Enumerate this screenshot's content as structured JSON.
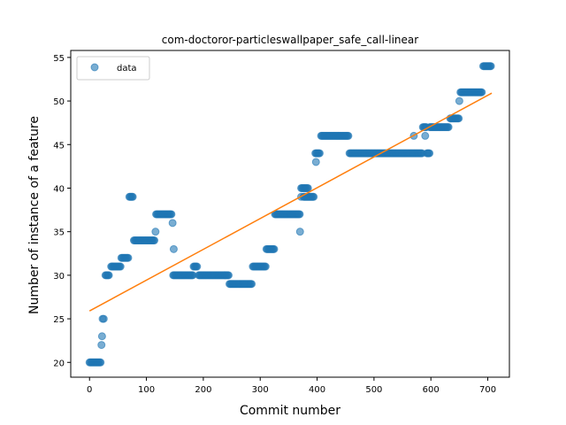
{
  "chart_data": {
    "type": "scatter",
    "title": "com-doctoror-particleswallpaper_safe_call-linear",
    "xlabel": "Commit number",
    "ylabel": "Number of instance of a feature",
    "xlim": [
      -33,
      738
    ],
    "ylim": [
      18.3,
      55.8
    ],
    "xticks": [
      0,
      100,
      200,
      300,
      400,
      500,
      600,
      700
    ],
    "yticks": [
      20,
      25,
      30,
      35,
      40,
      45,
      50,
      55
    ],
    "legend": {
      "placement": "top-left",
      "entries": [
        {
          "label": "data"
        }
      ]
    },
    "colors": {
      "points": "#1f77b4",
      "fit_line": "#ff7f0e"
    },
    "series": [
      {
        "name": "data",
        "kind": "points",
        "segments": [
          {
            "x_start": 0,
            "x_end": 20,
            "y": 20
          },
          {
            "x_start": 28,
            "x_end": 35,
            "y": 30
          },
          {
            "x_start": 38,
            "x_end": 55,
            "y": 31
          },
          {
            "x_start": 56,
            "x_end": 68,
            "y": 32
          },
          {
            "x_start": 70,
            "x_end": 76,
            "y": 39
          },
          {
            "x_start": 78,
            "x_end": 115,
            "y": 34
          },
          {
            "x_start": 117,
            "x_end": 145,
            "y": 37
          },
          {
            "x_start": 147,
            "x_end": 182,
            "y": 30
          },
          {
            "x_start": 183,
            "x_end": 190,
            "y": 31
          },
          {
            "x_start": 192,
            "x_end": 245,
            "y": 30
          },
          {
            "x_start": 246,
            "x_end": 285,
            "y": 29
          },
          {
            "x_start": 287,
            "x_end": 310,
            "y": 31
          },
          {
            "x_start": 311,
            "x_end": 325,
            "y": 33
          },
          {
            "x_start": 326,
            "x_end": 370,
            "y": 37
          },
          {
            "x_start": 372,
            "x_end": 385,
            "y": 40
          },
          {
            "x_start": 376,
            "x_end": 395,
            "y": 39
          },
          {
            "x_start": 397,
            "x_end": 405,
            "y": 44
          },
          {
            "x_start": 407,
            "x_end": 455,
            "y": 46
          },
          {
            "x_start": 457,
            "x_end": 585,
            "y": 44
          },
          {
            "x_start": 586,
            "x_end": 592,
            "y": 47
          },
          {
            "x_start": 593,
            "x_end": 598,
            "y": 44
          },
          {
            "x_start": 598,
            "x_end": 632,
            "y": 47
          },
          {
            "x_start": 634,
            "x_end": 650,
            "y": 48
          },
          {
            "x_start": 652,
            "x_end": 690,
            "y": 51
          },
          {
            "x_start": 692,
            "x_end": 706,
            "y": 54
          }
        ],
        "points": [
          [
            21,
            22
          ],
          [
            22,
            23
          ],
          [
            23,
            25
          ],
          [
            25,
            25
          ],
          [
            116,
            35
          ],
          [
            146,
            36
          ],
          [
            148,
            33
          ],
          [
            370,
            35
          ],
          [
            372,
            39
          ],
          [
            398,
            43
          ],
          [
            570,
            46
          ],
          [
            590,
            46
          ],
          [
            650,
            50
          ]
        ]
      },
      {
        "name": "",
        "kind": "line",
        "x": [
          0,
          707
        ],
        "y": [
          25.9,
          50.9
        ]
      }
    ]
  }
}
